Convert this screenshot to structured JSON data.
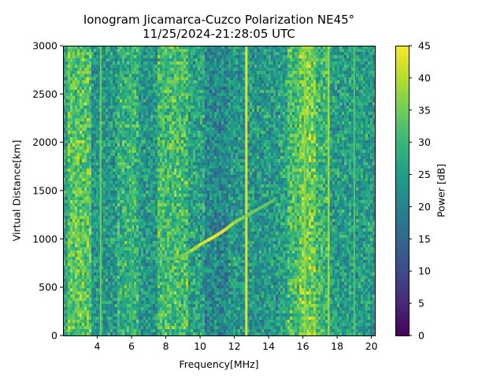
{
  "chart_data": {
    "type": "heatmap",
    "title": "Ionogram Jicamarca-Cuzco Polarization NE45°",
    "subtitle": "11/25/2024-21:28:05 UTC",
    "xlabel": "Frequency[MHz]",
    "ylabel": "Virtual Distance[km]",
    "xlim": [
      2.0,
      20.2
    ],
    "ylim": [
      0,
      3000
    ],
    "xticks": [
      4,
      6,
      8,
      10,
      12,
      14,
      16,
      18,
      20
    ],
    "yticks": [
      0,
      500,
      1000,
      1500,
      2000,
      2500,
      3000
    ],
    "colorbar": {
      "label": "Power [dB]",
      "range": [
        0,
        45
      ],
      "ticks": [
        0,
        5,
        10,
        15,
        20,
        25,
        30,
        35,
        40,
        45
      ],
      "colormap": "viridis"
    },
    "background_bands": [
      {
        "freq_range": [
          2.0,
          2.3
        ],
        "power_db": 26
      },
      {
        "freq_range": [
          2.3,
          3.7
        ],
        "power_db": 33
      },
      {
        "freq_range": [
          3.7,
          5.2
        ],
        "power_db": 24
      },
      {
        "freq_range": [
          5.2,
          6.4
        ],
        "power_db": 29
      },
      {
        "freq_range": [
          6.4,
          7.5
        ],
        "power_db": 24
      },
      {
        "freq_range": [
          7.5,
          9.3
        ],
        "power_db": 31
      },
      {
        "freq_range": [
          9.3,
          10.3
        ],
        "power_db": 26
      },
      {
        "freq_range": [
          10.3,
          11.7
        ],
        "power_db": 21
      },
      {
        "freq_range": [
          11.7,
          14.5
        ],
        "power_db": 24
      },
      {
        "freq_range": [
          14.5,
          15.1
        ],
        "power_db": 26
      },
      {
        "freq_range": [
          15.1,
          15.8
        ],
        "power_db": 31
      },
      {
        "freq_range": [
          15.8,
          16.8
        ],
        "power_db": 35
      },
      {
        "freq_range": [
          16.8,
          17.6
        ],
        "power_db": 30
      },
      {
        "freq_range": [
          17.6,
          20.2
        ],
        "power_db": 25
      }
    ],
    "interference_lines": [
      {
        "freq": 4.2,
        "power_db": 36
      },
      {
        "freq": 6.0,
        "power_db": 30
      },
      {
        "freq": 12.7,
        "power_db": 44
      },
      {
        "freq": 16.1,
        "power_db": 38
      },
      {
        "freq": 17.5,
        "power_db": 39
      },
      {
        "freq": 19.0,
        "power_db": 33
      }
    ],
    "trace": {
      "name": "ionospheric echo",
      "freq_mhz": [
        8.0,
        8.5,
        9.0,
        9.5,
        10.0,
        10.5,
        11.0,
        11.5,
        12.0,
        12.5,
        13.0,
        13.5,
        14.0,
        14.3
      ],
      "distance_km": [
        790,
        800,
        830,
        880,
        940,
        990,
        1040,
        1100,
        1170,
        1220,
        1270,
        1320,
        1370,
        1400
      ],
      "power_db": [
        33,
        34,
        36,
        40,
        42,
        44,
        43,
        41,
        38,
        36,
        35,
        34,
        33,
        33
      ]
    }
  }
}
